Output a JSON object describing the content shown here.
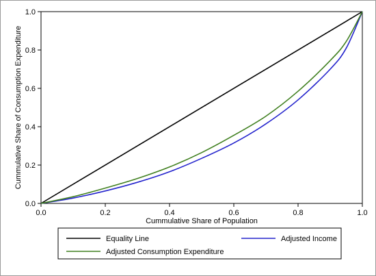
{
  "chart_data": {
    "type": "line",
    "xlabel": "Cummulative Share of Population",
    "ylabel": "Cummulative Share of Consumption Expenditure",
    "xlim": [
      0,
      1
    ],
    "ylim": [
      0,
      1
    ],
    "x_ticks": [
      "0.0",
      "0.2",
      "0.4",
      "0.6",
      "0.8",
      "1.0"
    ],
    "y_ticks": [
      "0.0",
      "0.2",
      "0.4",
      "0.6",
      "0.8",
      "1.0"
    ],
    "grid": false,
    "legend_position": "bottom",
    "series": [
      {
        "name": "Equality Line",
        "color": "#000000",
        "x": [
          0,
          1
        ],
        "y": [
          0,
          1
        ]
      },
      {
        "name": "Adjusted Income",
        "color": "#2222cc",
        "x": [
          0,
          0.1,
          0.2,
          0.3,
          0.4,
          0.5,
          0.6,
          0.7,
          0.8,
          0.9,
          0.95,
          1.0
        ],
        "y": [
          0,
          0.028,
          0.065,
          0.11,
          0.165,
          0.235,
          0.315,
          0.415,
          0.54,
          0.7,
          0.81,
          1.0
        ]
      },
      {
        "name": "Adjusted Consumption Expenditure",
        "color": "#3f7f1f",
        "x": [
          0,
          0.1,
          0.2,
          0.3,
          0.4,
          0.5,
          0.6,
          0.7,
          0.8,
          0.9,
          0.95,
          1.0
        ],
        "y": [
          0,
          0.035,
          0.08,
          0.13,
          0.19,
          0.265,
          0.355,
          0.455,
          0.585,
          0.745,
          0.845,
          1.0
        ]
      }
    ]
  }
}
